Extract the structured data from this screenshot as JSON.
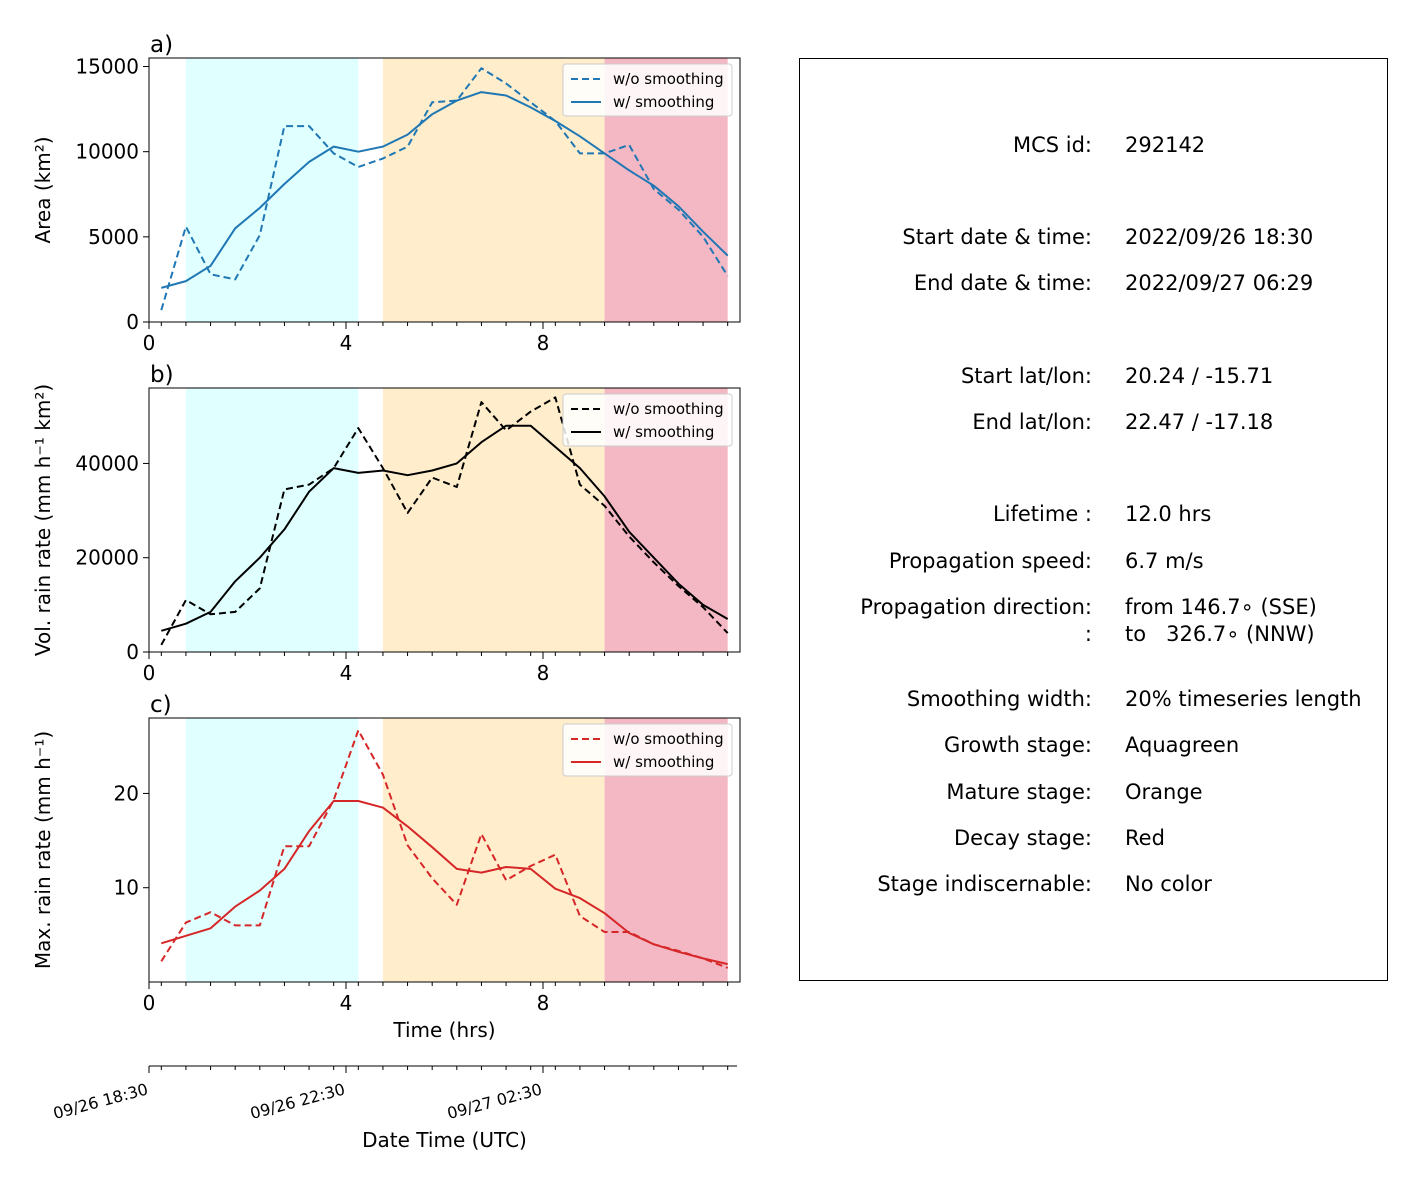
{
  "panels": [
    {
      "letter": "a)",
      "ylabel": "Area  (km²)",
      "ylim": [
        0,
        15500
      ],
      "yticks": [
        0,
        5000,
        10000,
        15000
      ],
      "color": "#1f77b4",
      "legend": [
        "w/o smoothing",
        "w/ smoothing"
      ]
    },
    {
      "letter": "b)",
      "ylabel": "Vol. rain rate (mm h⁻¹ km²)",
      "ylim": [
        0,
        56000
      ],
      "yticks": [
        0,
        20000,
        40000
      ],
      "color": "#000000",
      "legend": [
        "w/o smoothing",
        "w/ smoothing"
      ]
    },
    {
      "letter": "c)",
      "ylabel": "Max. rain rate  (mm h⁻¹)",
      "ylim": [
        0,
        28
      ],
      "yticks": [
        10,
        20
      ],
      "color": "#d62728",
      "legend": [
        "w/o smoothing",
        "w/ smoothing"
      ]
    }
  ],
  "xaxis": {
    "label": "Time (hrs)",
    "xlim": [
      0,
      12
    ],
    "ticks": [
      0,
      4,
      8
    ],
    "minor_ticks": [
      0.25,
      0.75,
      1.25,
      1.75,
      2.25,
      2.75,
      3.25,
      3.75,
      4.25,
      4.75,
      5.25,
      5.75,
      6.25,
      6.75,
      7.25,
      7.75,
      8.25,
      8.75,
      9.25,
      9.75,
      10.25,
      10.75,
      11.25,
      11.75
    ]
  },
  "date_axis": {
    "label": "Date Time (UTC)",
    "ticks": [
      {
        "x": 0,
        "label": "09/26 18:30"
      },
      {
        "x": 4,
        "label": "09/26 22:30"
      },
      {
        "x": 8,
        "label": "09/27 02:30"
      }
    ]
  },
  "stages": [
    {
      "name": "Growth",
      "from": 0.75,
      "to": 4.25,
      "color": "#e0ffff"
    },
    {
      "name": "Mature",
      "from": 4.75,
      "to": 9.25,
      "color": "#ffedcc"
    },
    {
      "name": "Decay",
      "from": 9.25,
      "to": 11.75,
      "color": "#f4b8c5"
    }
  ],
  "chart_data": [
    {
      "type": "line",
      "ylabel": "Area  (km²)",
      "xlabel": "",
      "x": [
        0.25,
        0.75,
        1.25,
        1.75,
        2.25,
        2.75,
        3.25,
        3.75,
        4.25,
        4.75,
        5.25,
        5.75,
        6.25,
        6.75,
        7.25,
        7.75,
        8.25,
        8.75,
        9.25,
        9.75,
        10.25,
        10.75,
        11.25,
        11.75
      ],
      "series": [
        {
          "name": "w/o smoothing",
          "values": [
            700,
            5600,
            2800,
            2500,
            5100,
            11500,
            11500,
            9900,
            9100,
            9600,
            10300,
            12900,
            13000,
            14900,
            14000,
            12900,
            11800,
            9900,
            9900,
            10400,
            7800,
            6600,
            5000,
            2700
          ]
        },
        {
          "name": "w/ smoothing",
          "values": [
            2000,
            2400,
            3300,
            5500,
            6700,
            8100,
            9400,
            10300,
            10000,
            10300,
            11000,
            12200,
            13000,
            13500,
            13300,
            12600,
            11800,
            10900,
            9900,
            8900,
            8000,
            6800,
            5300,
            3900
          ]
        }
      ]
    },
    {
      "type": "line",
      "ylabel": "Vol. rain rate (mm h⁻¹ km²)",
      "xlabel": "",
      "x": [
        0.25,
        0.75,
        1.25,
        1.75,
        2.25,
        2.75,
        3.25,
        3.75,
        4.25,
        4.75,
        5.25,
        5.75,
        6.25,
        6.75,
        7.25,
        7.75,
        8.25,
        8.75,
        9.25,
        9.75,
        10.25,
        10.75,
        11.25,
        11.75
      ],
      "series": [
        {
          "name": "w/o smoothing",
          "values": [
            1500,
            11000,
            8000,
            8500,
            13500,
            34500,
            35500,
            39000,
            47500,
            39000,
            29500,
            37000,
            35000,
            53000,
            47000,
            51000,
            54000,
            35500,
            31000,
            24500,
            19000,
            14000,
            9500,
            4000
          ]
        },
        {
          "name": "w/ smoothing",
          "values": [
            4500,
            6000,
            8500,
            15000,
            20000,
            26000,
            34000,
            39000,
            38000,
            38500,
            37500,
            38500,
            40000,
            44500,
            48000,
            48000,
            43500,
            39000,
            33000,
            25500,
            20000,
            14500,
            10000,
            7000
          ]
        }
      ]
    },
    {
      "type": "line",
      "ylabel": "Max. rain rate  (mm h⁻¹)",
      "xlabel": "Time (hrs)",
      "x": [
        0.25,
        0.75,
        1.25,
        1.75,
        2.25,
        2.75,
        3.25,
        3.75,
        4.25,
        4.75,
        5.25,
        5.75,
        6.25,
        6.75,
        7.25,
        7.75,
        8.25,
        8.75,
        9.25,
        9.75,
        10.25,
        10.75,
        11.25,
        11.75
      ],
      "series": [
        {
          "name": "w/o smoothing",
          "values": [
            2.2,
            6.3,
            7.4,
            6.0,
            6.0,
            14.4,
            14.4,
            19.3,
            26.7,
            22.0,
            14.5,
            11.0,
            8.2,
            15.7,
            10.8,
            12.3,
            13.5,
            7.0,
            5.3,
            5.3,
            4.0,
            3.3,
            2.5,
            1.5
          ]
        },
        {
          "name": "w/ smoothing",
          "values": [
            4.1,
            4.9,
            5.7,
            8.0,
            9.7,
            12.0,
            16.0,
            19.2,
            19.2,
            18.5,
            16.5,
            14.3,
            12.0,
            11.6,
            12.2,
            12.0,
            9.9,
            8.9,
            7.3,
            5.2,
            4.0,
            3.2,
            2.5,
            1.9
          ]
        }
      ]
    }
  ],
  "info": {
    "rows": [
      {
        "label": "MCS id:",
        "value": "292142"
      },
      {
        "label": "Start date & time:",
        "value": "2022/09/26 18:30"
      },
      {
        "label": "End date & time:",
        "value": "2022/09/27 06:29"
      },
      {
        "label": "Start lat/lon:",
        "value": "20.24 / -15.71"
      },
      {
        "label": "End lat/lon:",
        "value": "22.47 / -17.18"
      },
      {
        "label": "Lifetime :",
        "value": "12.0 hrs"
      },
      {
        "label": "Propagation speed:",
        "value": "6.7 m/s"
      },
      {
        "label": "Propagation direction:",
        "value": "from 146.7∘ (SSE)"
      },
      {
        "label": ":",
        "value": "to   326.7∘ (NNW)"
      },
      {
        "label": "Smoothing width:",
        "value": "20% timeseries length"
      },
      {
        "label": "Growth stage:",
        "value": "Aquagreen"
      },
      {
        "label": "Mature stage:",
        "value": "Orange"
      },
      {
        "label": "Decay stage:",
        "value": "Red"
      },
      {
        "label": "Stage indiscernable:",
        "value": "No color"
      }
    ]
  }
}
